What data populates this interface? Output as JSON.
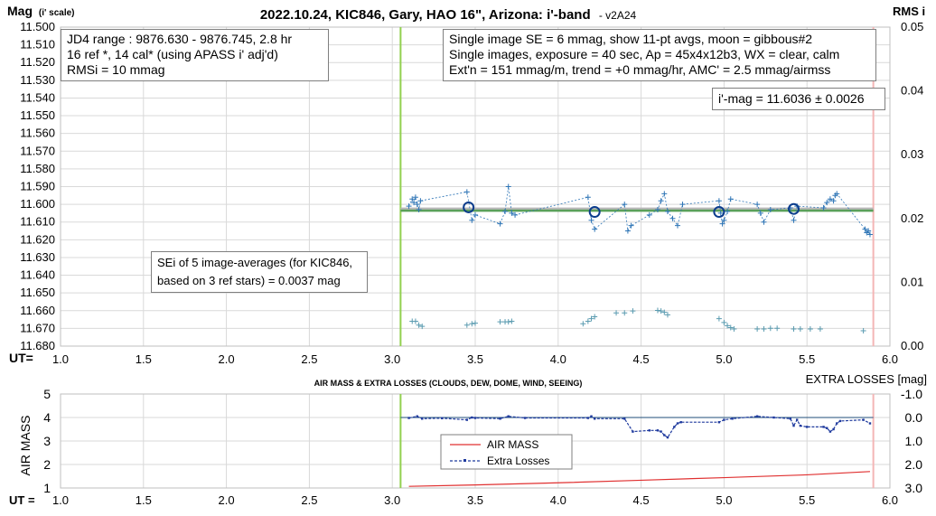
{
  "top_chart": {
    "title": "2022.10.24, KIC846, Gary, HAO 16\", Arizona: i'-band",
    "version": "- v2A24",
    "ylabel_main": "Mag",
    "ylabel_sub": "(i' scale)",
    "rms_label": "RMS i",
    "x_axis_label": "UT=",
    "info_left": [
      "JD4 range : 9876.630 - 9876.745, 2.8  hr",
      "16 ref *, 14 cal* (using APASS i' adj'd)",
      "RMSi = 10 mmag"
    ],
    "info_right": [
      "Single image SE = 6 mmag, show 11-pt avgs, moon = gibbous#2",
      "Single images, exposure = 40 sec, Ap = 45x4x12b3, WX = clear, calm",
      "Ext'n = 151 mmag/m, trend = +0 mmag/hr, AMC' = 2.5 mmag/airmss"
    ],
    "result_box": "i'-mag = 11.6036 ± 0.0026",
    "sei_box": [
      "SEi of 5 image-averages (for KIC846,",
      "based on 3 ref stars) = 0.0037 mag"
    ]
  },
  "bottom_chart": {
    "title": "AIR MASS & EXTRA LOSSES (CLOUDS, DEW, DOME, WIND, SEEING)",
    "ylabel": "AIR MASS",
    "right_label": "EXTRA LOSSES [mag]",
    "x_axis_label": "UT =",
    "legend": [
      "AIR MASS",
      "Extra Losses"
    ]
  },
  "colors": {
    "grid": "#d9d9d9",
    "series_blue": "#2e75b6",
    "rms_teal": "#5a9bb0",
    "avg_circle": "#0b3c8c",
    "mean_green": "#5aa05a",
    "start_line": "#92d050",
    "end_line": "#f4b6b6",
    "airmass_red": "#e03030",
    "losses_blue": "#1f3a9e"
  },
  "chart_data": [
    {
      "type": "scatter",
      "title": "2022.10.24, KIC846, Gary, HAO 16\", Arizona: i'-band",
      "xlabel": "UT=",
      "ylabel": "Mag (i' scale)",
      "xlim": [
        1.0,
        6.0
      ],
      "ylim": [
        11.68,
        11.5
      ],
      "y_ticks": [
        "11.500",
        "11.510",
        "11.520",
        "11.530",
        "11.540",
        "11.550",
        "11.560",
        "11.570",
        "11.580",
        "11.590",
        "11.600",
        "11.610",
        "11.620",
        "11.630",
        "11.640",
        "11.650",
        "11.660",
        "11.670",
        "11.680"
      ],
      "x_ticks": [
        "1.0",
        "1.5",
        "2.0",
        "2.5",
        "3.0",
        "3.5",
        "4.0",
        "4.5",
        "5.0",
        "5.5",
        "6.0"
      ],
      "y2_label": "RMS i",
      "y2lim": [
        0.0,
        0.05
      ],
      "y2_ticks": [
        "0.00",
        "0.01",
        "0.02",
        "0.03",
        "0.04",
        "0.05"
      ],
      "start_ut": 3.05,
      "end_ut": 5.9,
      "mean_mag": 11.6036,
      "series": [
        {
          "name": "",
          "x": [
            3.1,
            3.12,
            3.13,
            3.14,
            3.15,
            3.16,
            3.17,
            3.45,
            3.48,
            3.5,
            3.65,
            3.68,
            3.7,
            3.72,
            3.74,
            4.18,
            4.2,
            4.22,
            4.4,
            4.42,
            4.44,
            4.55,
            4.6,
            4.62,
            4.64,
            4.66,
            4.69,
            4.72,
            4.75,
            4.97,
            4.98,
            4.99,
            5.0,
            5.02,
            5.04,
            5.2,
            5.22,
            5.24,
            5.28,
            5.4,
            5.42,
            5.44,
            5.6,
            5.62,
            5.64,
            5.66,
            5.67,
            5.68,
            5.85,
            5.86,
            5.87,
            5.88
          ],
          "y": [
            11.601,
            11.597,
            11.599,
            11.596,
            11.6,
            11.603,
            11.598,
            11.593,
            11.609,
            11.606,
            11.611,
            11.604,
            11.59,
            11.605,
            11.606,
            11.596,
            11.609,
            11.614,
            11.6,
            11.615,
            11.612,
            11.606,
            11.603,
            11.598,
            11.594,
            11.604,
            11.608,
            11.612,
            11.6,
            11.598,
            11.605,
            11.611,
            11.609,
            11.604,
            11.597,
            11.6,
            11.605,
            11.61,
            11.603,
            11.602,
            11.609,
            11.601,
            11.602,
            11.599,
            11.597,
            11.598,
            11.595,
            11.594,
            11.614,
            11.616,
            11.615,
            11.617
          ]
        },
        {
          "name": "",
          "x": [
            3.46,
            4.22,
            4.97,
            5.42
          ],
          "y": [
            11.6017,
            11.6043,
            11.6043,
            11.6026
          ]
        },
        {
          "name": "",
          "x": [
            3.12,
            3.14,
            3.16,
            3.18,
            3.45,
            3.48,
            3.5,
            3.65,
            3.68,
            3.7,
            3.72,
            4.15,
            4.18,
            4.2,
            4.22,
            4.35,
            4.4,
            4.45,
            4.6,
            4.62,
            4.64,
            4.66,
            4.97,
            5.0,
            5.02,
            5.04,
            5.06,
            5.2,
            5.24,
            5.28,
            5.32,
            5.42,
            5.46,
            5.52,
            5.58,
            5.84
          ],
          "y": [
            0.0039,
            0.0039,
            0.0033,
            0.0031,
            0.0033,
            0.0035,
            0.0036,
            0.0038,
            0.0038,
            0.0038,
            0.0039,
            0.0035,
            0.0039,
            0.0043,
            0.0046,
            0.0052,
            0.0052,
            0.0055,
            0.0056,
            0.0055,
            0.0053,
            0.0049,
            0.0043,
            0.0037,
            0.0032,
            0.0029,
            0.0027,
            0.0027,
            0.0027,
            0.0028,
            0.0028,
            0.0027,
            0.0027,
            0.0027,
            0.0027,
            0.0024
          ]
        }
      ]
    },
    {
      "type": "line",
      "title": "AIR MASS & EXTRA LOSSES (CLOUDS, DEW, DOME, WIND, SEEING)",
      "xlabel": "UT =",
      "ylabel": "AIR MASS",
      "xlim": [
        1.0,
        6.0
      ],
      "ylim": [
        1,
        5
      ],
      "x_ticks": [
        "1.0",
        "1.5",
        "2.0",
        "2.5",
        "3.0",
        "3.5",
        "4.0",
        "4.5",
        "5.0",
        "5.5",
        "6.0"
      ],
      "y_ticks": [
        "1",
        "2",
        "3",
        "4",
        "5"
      ],
      "y2_label": "EXTRA LOSSES [mag]",
      "y2lim": [
        3.0,
        -1.0
      ],
      "y2_ticks": [
        "-1.0",
        "0.0",
        "1.0",
        "2.0",
        "3.0"
      ],
      "legend": "center-bottom",
      "series": [
        {
          "name": "AIR MASS",
          "x": [
            3.1,
            3.5,
            4.0,
            4.5,
            5.0,
            5.5,
            5.88
          ],
          "y": [
            1.07,
            1.13,
            1.22,
            1.33,
            1.44,
            1.56,
            1.7
          ]
        },
        {
          "name": "Extra Losses",
          "x": [
            3.1,
            3.15,
            3.18,
            3.3,
            3.45,
            3.48,
            3.5,
            3.65,
            3.7,
            3.8,
            4.18,
            4.2,
            4.22,
            4.4,
            4.45,
            4.55,
            4.6,
            4.62,
            4.64,
            4.66,
            4.7,
            4.72,
            4.74,
            4.97,
            5.0,
            5.05,
            5.2,
            5.3,
            5.4,
            5.42,
            5.44,
            5.46,
            5.5,
            5.6,
            5.62,
            5.64,
            5.66,
            5.68,
            5.7,
            5.84,
            5.88
          ],
          "y": [
            0.02,
            -0.05,
            0.05,
            0.03,
            0.1,
            0.0,
            0.02,
            0.05,
            -0.05,
            0.02,
            0.02,
            -0.05,
            0.05,
            0.05,
            0.6,
            0.55,
            0.55,
            0.6,
            0.75,
            0.85,
            0.4,
            0.25,
            0.2,
            0.2,
            0.1,
            0.05,
            -0.05,
            0.0,
            0.05,
            0.35,
            0.1,
            0.35,
            0.4,
            0.4,
            0.45,
            0.6,
            0.5,
            0.25,
            0.15,
            0.1,
            0.25
          ]
        }
      ]
    }
  ]
}
